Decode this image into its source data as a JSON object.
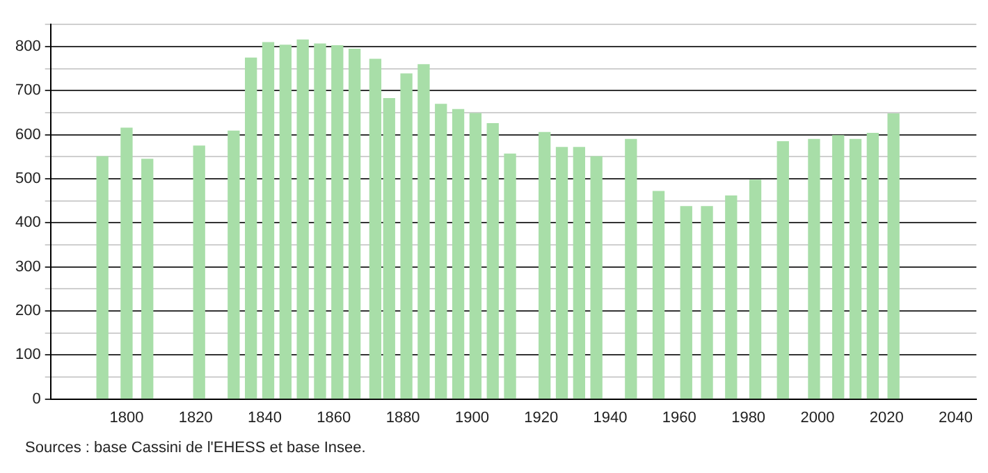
{
  "chart_data": {
    "type": "bar",
    "x": [
      1793,
      1800,
      1806,
      1821,
      1831,
      1836,
      1841,
      1846,
      1851,
      1856,
      1861,
      1866,
      1872,
      1876,
      1881,
      1886,
      1891,
      1896,
      1901,
      1906,
      1911,
      1921,
      1926,
      1931,
      1936,
      1946,
      1954,
      1962,
      1968,
      1975,
      1982,
      1990,
      1999,
      2006,
      2011,
      2016,
      2022
    ],
    "values": [
      550,
      615,
      544,
      574,
      608,
      774,
      809,
      803,
      815,
      806,
      802,
      794,
      771,
      682,
      738,
      759,
      669,
      657,
      648,
      625,
      556,
      605,
      571,
      571,
      550,
      589,
      471,
      437,
      437,
      461,
      497,
      584,
      589,
      598,
      589,
      603,
      647
    ],
    "color": "#a8dea8",
    "xlim": [
      1778,
      2046
    ],
    "xticks": [
      1800,
      1820,
      1840,
      1860,
      1880,
      1900,
      1920,
      1940,
      1960,
      1980,
      2000,
      2020,
      2040
    ],
    "ylim": [
      0,
      850
    ],
    "yticks": [
      0,
      {
        "value": 50,
        "label": null
      },
      100,
      {
        "value": 150,
        "label": null
      },
      200,
      {
        "value": 250,
        "label": null
      },
      300,
      {
        "value": 350,
        "label": null
      },
      400,
      {
        "value": 450,
        "label": null
      },
      500,
      {
        "value": 550,
        "label": null
      },
      600,
      {
        "value": 650,
        "label": null
      },
      700,
      {
        "value": 750,
        "label": null
      },
      800,
      {
        "value": 850,
        "label": null
      }
    ],
    "grid": "y",
    "legend": false,
    "annotations": [
      "Sources : base Cassini de l'EHESS et base Insee."
    ]
  }
}
